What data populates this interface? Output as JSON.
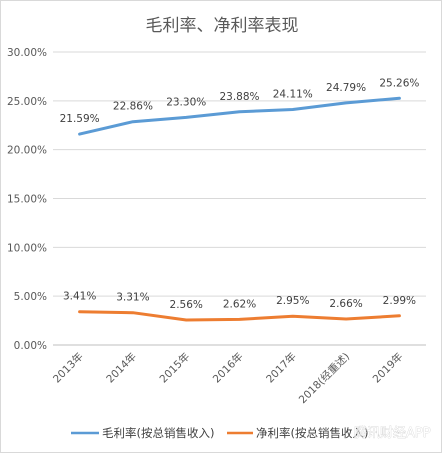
{
  "chart_data": {
    "type": "line",
    "title": "毛利率、净利率表现",
    "categories": [
      "2013年",
      "2014年",
      "2015年",
      "2016年",
      "2017年",
      "2018(经重述)",
      "2019年"
    ],
    "y_ticks": [
      "0.00%",
      "5.00%",
      "10.00%",
      "15.00%",
      "20.00%",
      "25.00%",
      "30.00%"
    ],
    "ylim": [
      0,
      30
    ],
    "grid": true,
    "legend_position": "bottom",
    "series": [
      {
        "name": "毛利率(按总销售收入)",
        "color": "#5b9bd5",
        "values": [
          21.59,
          22.86,
          23.3,
          23.88,
          24.11,
          24.79,
          25.26
        ],
        "labels": [
          "21.59%",
          "22.86%",
          "23.30%",
          "23.88%",
          "24.11%",
          "24.79%",
          "25.26%"
        ]
      },
      {
        "name": "净利率(按总销售收入)",
        "color": "#ed7d31",
        "values": [
          3.41,
          3.31,
          2.56,
          2.62,
          2.95,
          2.66,
          2.99
        ],
        "labels": [
          "3.41%",
          "3.31%",
          "2.56%",
          "2.62%",
          "2.95%",
          "2.66%",
          "2.99%"
        ]
      }
    ]
  },
  "watermark": "腾讯财经APP"
}
